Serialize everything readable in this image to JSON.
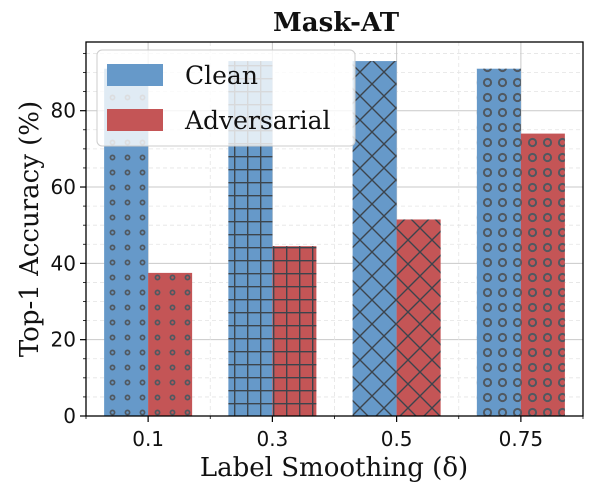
{
  "chart_data": {
    "type": "bar",
    "title": "Mask-AT",
    "xlabel": "Label Smoothing (δ)",
    "ylabel": "Top-1 Accuracy (%)",
    "categories": [
      "0.1",
      "0.3",
      "0.5",
      "0.75"
    ],
    "series": [
      {
        "name": "Clean",
        "values": [
          91.0,
          93.0,
          93.0,
          91.0
        ],
        "color": "#6699c9"
      },
      {
        "name": "Adversarial",
        "values": [
          37.5,
          44.5,
          51.5,
          74.0
        ],
        "color": "#c45556"
      }
    ],
    "hatches": [
      "circles",
      "grid",
      "crosshatch",
      "rings"
    ],
    "ylim": [
      0,
      98
    ],
    "yticks": [
      0,
      20,
      40,
      60,
      80
    ],
    "grid": true,
    "legend": "top-left"
  }
}
